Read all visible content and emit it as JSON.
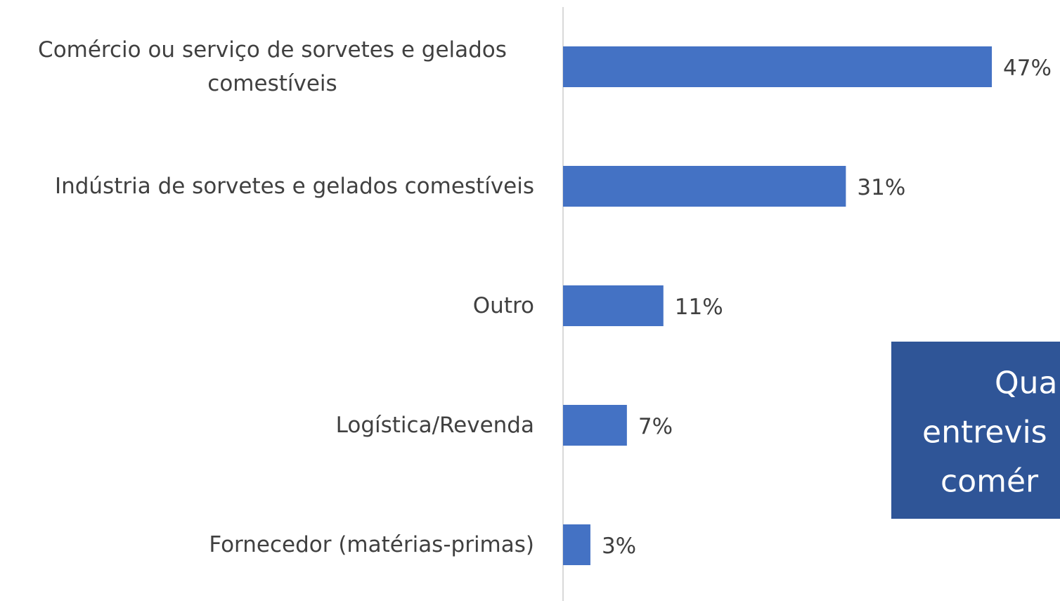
{
  "chart_data": {
    "type": "bar",
    "orientation": "horizontal",
    "categories": [
      "Comércio ou serviço de sorvetes e gelados comestíveis",
      "Indústria de sorvetes e gelados comestíveis",
      "Outro",
      "Logística/Revenda",
      "Fornecedor (matérias-primas)"
    ],
    "values": [
      47,
      31,
      11,
      7,
      3
    ],
    "value_labels": [
      "47%",
      "31%",
      "11%",
      "7%",
      "3%"
    ],
    "color": "#4472c4",
    "annotation": {
      "lines": [
        "Qua",
        "entrevis",
        "comér"
      ],
      "color": "#2f5597"
    }
  }
}
